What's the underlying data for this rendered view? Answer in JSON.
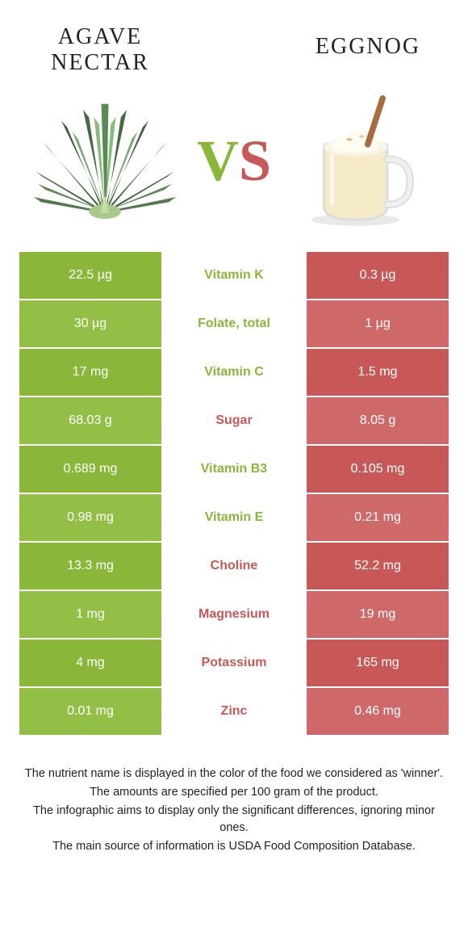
{
  "colors": {
    "left": "#8ab73a",
    "right": "#c85858",
    "left_alt": "#94bf47",
    "right_alt": "#cf6969"
  },
  "header": {
    "left_title": "AGAVE NECTAR",
    "right_title": "EGGNOG",
    "vs_v": "V",
    "vs_s": "S"
  },
  "rows": [
    {
      "left": "22.5 µg",
      "name": "Vitamin K",
      "right": "0.3 µg",
      "winner": "left"
    },
    {
      "left": "30 µg",
      "name": "Folate, total",
      "right": "1 µg",
      "winner": "left"
    },
    {
      "left": "17 mg",
      "name": "Vitamin C",
      "right": "1.5 mg",
      "winner": "left"
    },
    {
      "left": "68.03 g",
      "name": "Sugar",
      "right": "8.05 g",
      "winner": "right"
    },
    {
      "left": "0.689 mg",
      "name": "Vitamin B3",
      "right": "0.105 mg",
      "winner": "left"
    },
    {
      "left": "0.98 mg",
      "name": "Vitamin E",
      "right": "0.21 mg",
      "winner": "left"
    },
    {
      "left": "13.3 mg",
      "name": "Choline",
      "right": "52.2 mg",
      "winner": "right"
    },
    {
      "left": "1 mg",
      "name": "Magnesium",
      "right": "19 mg",
      "winner": "right"
    },
    {
      "left": "4 mg",
      "name": "Potassium",
      "right": "165 mg",
      "winner": "right"
    },
    {
      "left": "0.01 mg",
      "name": "Zinc",
      "right": "0.46 mg",
      "winner": "right"
    }
  ],
  "footer": {
    "l1": "The nutrient name is displayed in the color of the food we considered as 'winner'.",
    "l2": "The amounts are specified per 100 gram of the product.",
    "l3": "The infographic aims to display only the significant differences, ignoring minor ones.",
    "l4": "The main source of information is USDA Food Composition Database."
  }
}
